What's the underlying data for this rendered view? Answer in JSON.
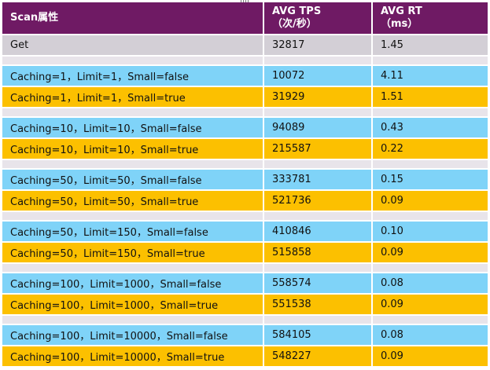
{
  "header": {
    "col1": "Scan属性",
    "col2_line1": "AVG TPS",
    "col2_line2": "（次/秒）",
    "col3_line1": "AVG RT",
    "col3_line2": "（ms）"
  },
  "groups": [
    {
      "rows": [
        {
          "style": "gray",
          "attr": "Get",
          "tps": "32817",
          "rt": "1.45"
        }
      ]
    },
    {
      "rows": [
        {
          "style": "blue",
          "attr": "Caching=1，Limit=1，Small=false",
          "tps": "10072",
          "rt": "4.11"
        },
        {
          "style": "orange",
          "attr": "Caching=1，Limit=1，Small=true",
          "tps": "31929",
          "rt": "1.51"
        }
      ]
    },
    {
      "rows": [
        {
          "style": "blue",
          "attr": "Caching=10，Limit=10，Small=false",
          "tps": "94089",
          "rt": "0.43"
        },
        {
          "style": "orange",
          "attr": "Caching=10，Limit=10，Small=true",
          "tps": "215587",
          "rt": "0.22"
        }
      ]
    },
    {
      "rows": [
        {
          "style": "blue",
          "attr": "Caching=50，Limit=50，Small=false",
          "tps": "333781",
          "rt": "0.15"
        },
        {
          "style": "orange",
          "attr": "Caching=50，Limit=50，Small=true",
          "tps": "521736",
          "rt": "0.09"
        }
      ]
    },
    {
      "rows": [
        {
          "style": "blue",
          "attr": "Caching=50，Limit=150，Small=false",
          "tps": "410846",
          "rt": "0.10"
        },
        {
          "style": "orange",
          "attr": "Caching=50，Limit=150，Small=true",
          "tps": "515858",
          "rt": "0.09"
        }
      ]
    },
    {
      "rows": [
        {
          "style": "blue",
          "attr": "Caching=100，Limit=1000，Small=false",
          "tps": "558574",
          "rt": "0.08"
        },
        {
          "style": "orange",
          "attr": "Caching=100，Limit=1000，Small=true",
          "tps": "551538",
          "rt": "0.09"
        }
      ]
    },
    {
      "rows": [
        {
          "style": "blue",
          "attr": "Caching=100，Limit=10000，Small=false",
          "tps": "584105",
          "rt": "0.08"
        },
        {
          "style": "orange",
          "attr": "Caching=100，Limit=10000，Small=true",
          "tps": "548227",
          "rt": "0.09"
        }
      ]
    }
  ]
}
